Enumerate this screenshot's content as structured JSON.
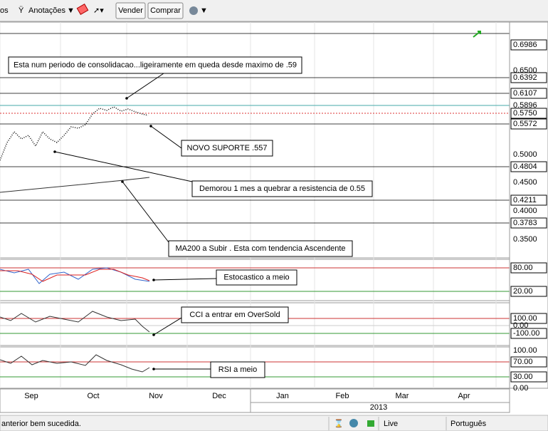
{
  "toolbar": {
    "menu_fragment": "os",
    "annotations": "Anotações",
    "sell": "Vender",
    "buy": "Comprar"
  },
  "price_axis": [
    "0.6986",
    "0.6500",
    "0.6392",
    "0.6107",
    "0.5896",
    "0.5750",
    "0.5572",
    "0.5000",
    "0.4804",
    "0.4500",
    "0.4211",
    "0.4000",
    "0.3783",
    "0.3500"
  ],
  "annotations": [
    "Esta num periodo de consolidacao...ligeiramente em queda desde maximo de .59",
    "NOVO SUPORTE .557",
    "Demorou 1 mes a quebrar a resistencia de 0.55",
    "MA200 a Subir . Esta com tendencia Ascendente",
    "Estocastico a meio",
    "CCI a entrar em OverSold",
    "RSI a meio"
  ],
  "stochastic_axis": [
    "80.00",
    "20.00"
  ],
  "cci_axis": [
    "100.00",
    "0.00",
    "-100.00"
  ],
  "rsi_axis": [
    "100.00",
    "70.00",
    "30.00",
    "0.00"
  ],
  "months": [
    "Sep",
    "Oct",
    "Nov",
    "Dec",
    "Jan",
    "Feb",
    "Mar",
    "Apr"
  ],
  "year": "2013",
  "status": {
    "message": "anterior bem sucedida.",
    "mode": "Live",
    "language": "Português"
  }
}
